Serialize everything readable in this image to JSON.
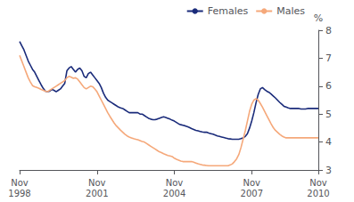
{
  "chart_data": {
    "type": "line",
    "ylabel": "%",
    "categories": [
      "Nov\n1998",
      null,
      null,
      null,
      null,
      null,
      null,
      null,
      null,
      null,
      null,
      null,
      null,
      null,
      null,
      null,
      null,
      null,
      null,
      null,
      null,
      null,
      null,
      null,
      null,
      null,
      null,
      null,
      null,
      null,
      null,
      null,
      null,
      null,
      null,
      null,
      "Nov\n2001",
      null,
      null,
      null,
      null,
      null,
      null,
      null,
      null,
      null,
      null,
      null,
      null,
      null,
      null,
      null,
      null,
      null,
      null,
      null,
      null,
      null,
      null,
      null,
      null,
      null,
      null,
      null,
      null,
      null,
      null,
      null,
      null,
      null,
      null,
      null,
      "Nov\n2004",
      null,
      null,
      null,
      null,
      null,
      null,
      null,
      null,
      null,
      null,
      null,
      null,
      null,
      null,
      null,
      null,
      null,
      null,
      null,
      null,
      null,
      null,
      null,
      null,
      null,
      null,
      null,
      null,
      null,
      null,
      null,
      null,
      null,
      null,
      null,
      "Nov\n2007",
      null,
      null,
      null,
      null,
      null,
      null,
      null,
      null,
      null,
      null,
      null,
      null,
      null,
      null,
      null,
      null,
      null,
      null,
      null,
      null,
      null,
      null,
      null,
      null,
      null,
      null,
      null,
      null,
      null,
      null,
      "Nov\n2010"
    ],
    "series": [
      {
        "name": "Females",
        "color": "#1a2b7a",
        "values": [
          7.6,
          7.45,
          7.3,
          7.1,
          6.9,
          6.75,
          6.6,
          6.5,
          6.35,
          6.2,
          6.05,
          5.92,
          5.82,
          5.8,
          5.82,
          5.88,
          5.85,
          5.8,
          5.85,
          5.9,
          6.0,
          6.1,
          6.55,
          6.65,
          6.7,
          6.6,
          6.5,
          6.6,
          6.65,
          6.55,
          6.35,
          6.3,
          6.45,
          6.5,
          6.4,
          6.3,
          6.2,
          6.1,
          5.95,
          5.75,
          5.6,
          5.5,
          5.45,
          5.4,
          5.35,
          5.3,
          5.25,
          5.22,
          5.2,
          5.15,
          5.1,
          5.05,
          5.05,
          5.05,
          5.05,
          5.05,
          5.0,
          5.0,
          4.95,
          4.9,
          4.85,
          4.82,
          4.8,
          4.8,
          4.82,
          4.85,
          4.88,
          4.9,
          4.88,
          4.85,
          4.82,
          4.78,
          4.75,
          4.7,
          4.65,
          4.62,
          4.6,
          4.58,
          4.55,
          4.52,
          4.48,
          4.45,
          4.42,
          4.4,
          4.38,
          4.36,
          4.35,
          4.35,
          4.32,
          4.3,
          4.28,
          4.25,
          4.22,
          4.2,
          4.18,
          4.16,
          4.14,
          4.12,
          4.11,
          4.1,
          4.1,
          4.1,
          4.1,
          4.12,
          4.15,
          4.2,
          4.3,
          4.5,
          4.75,
          5.05,
          5.4,
          5.7,
          5.9,
          5.95,
          5.88,
          5.82,
          5.78,
          5.72,
          5.65,
          5.58,
          5.5,
          5.42,
          5.35,
          5.28,
          5.25,
          5.22,
          5.2,
          5.2,
          5.2,
          5.2,
          5.2,
          5.18,
          5.18,
          5.18,
          5.2,
          5.2,
          5.2,
          5.2,
          5.2,
          5.2
        ]
      },
      {
        "name": "Males",
        "color": "#f5a87a",
        "values": [
          7.1,
          6.9,
          6.7,
          6.5,
          6.3,
          6.15,
          6.02,
          5.98,
          5.95,
          5.92,
          5.88,
          5.85,
          5.82,
          5.8,
          5.85,
          5.9,
          5.95,
          6.0,
          6.05,
          6.1,
          6.15,
          6.2,
          6.3,
          6.35,
          6.32,
          6.28,
          6.3,
          6.25,
          6.15,
          6.05,
          5.95,
          5.9,
          5.95,
          6.0,
          5.98,
          5.9,
          5.8,
          5.65,
          5.5,
          5.35,
          5.2,
          5.05,
          4.92,
          4.8,
          4.68,
          4.58,
          4.5,
          4.42,
          4.35,
          4.28,
          4.22,
          4.18,
          4.15,
          4.12,
          4.1,
          4.08,
          4.05,
          4.02,
          4.0,
          3.95,
          3.9,
          3.85,
          3.8,
          3.75,
          3.7,
          3.65,
          3.62,
          3.58,
          3.55,
          3.52,
          3.5,
          3.48,
          3.42,
          3.38,
          3.35,
          3.32,
          3.3,
          3.3,
          3.3,
          3.3,
          3.3,
          3.28,
          3.25,
          3.22,
          3.2,
          3.18,
          3.17,
          3.16,
          3.15,
          3.15,
          3.15,
          3.15,
          3.15,
          3.15,
          3.15,
          3.15,
          3.15,
          3.15,
          3.18,
          3.22,
          3.3,
          3.4,
          3.55,
          3.8,
          4.1,
          4.4,
          4.75,
          5.1,
          5.35,
          5.5,
          5.55,
          5.5,
          5.38,
          5.25,
          5.1,
          4.95,
          4.8,
          4.65,
          4.52,
          4.42,
          4.35,
          4.28,
          4.22,
          4.18,
          4.15,
          4.15,
          4.15,
          4.15,
          4.15,
          4.15,
          4.15,
          4.15,
          4.15,
          4.15,
          4.15,
          4.15,
          4.15,
          4.15,
          4.15,
          4.15
        ]
      }
    ],
    "ylim": [
      3,
      8
    ],
    "yticks": [
      3,
      4,
      5,
      6,
      7,
      8
    ],
    "grid": false,
    "legend": "upper right"
  }
}
